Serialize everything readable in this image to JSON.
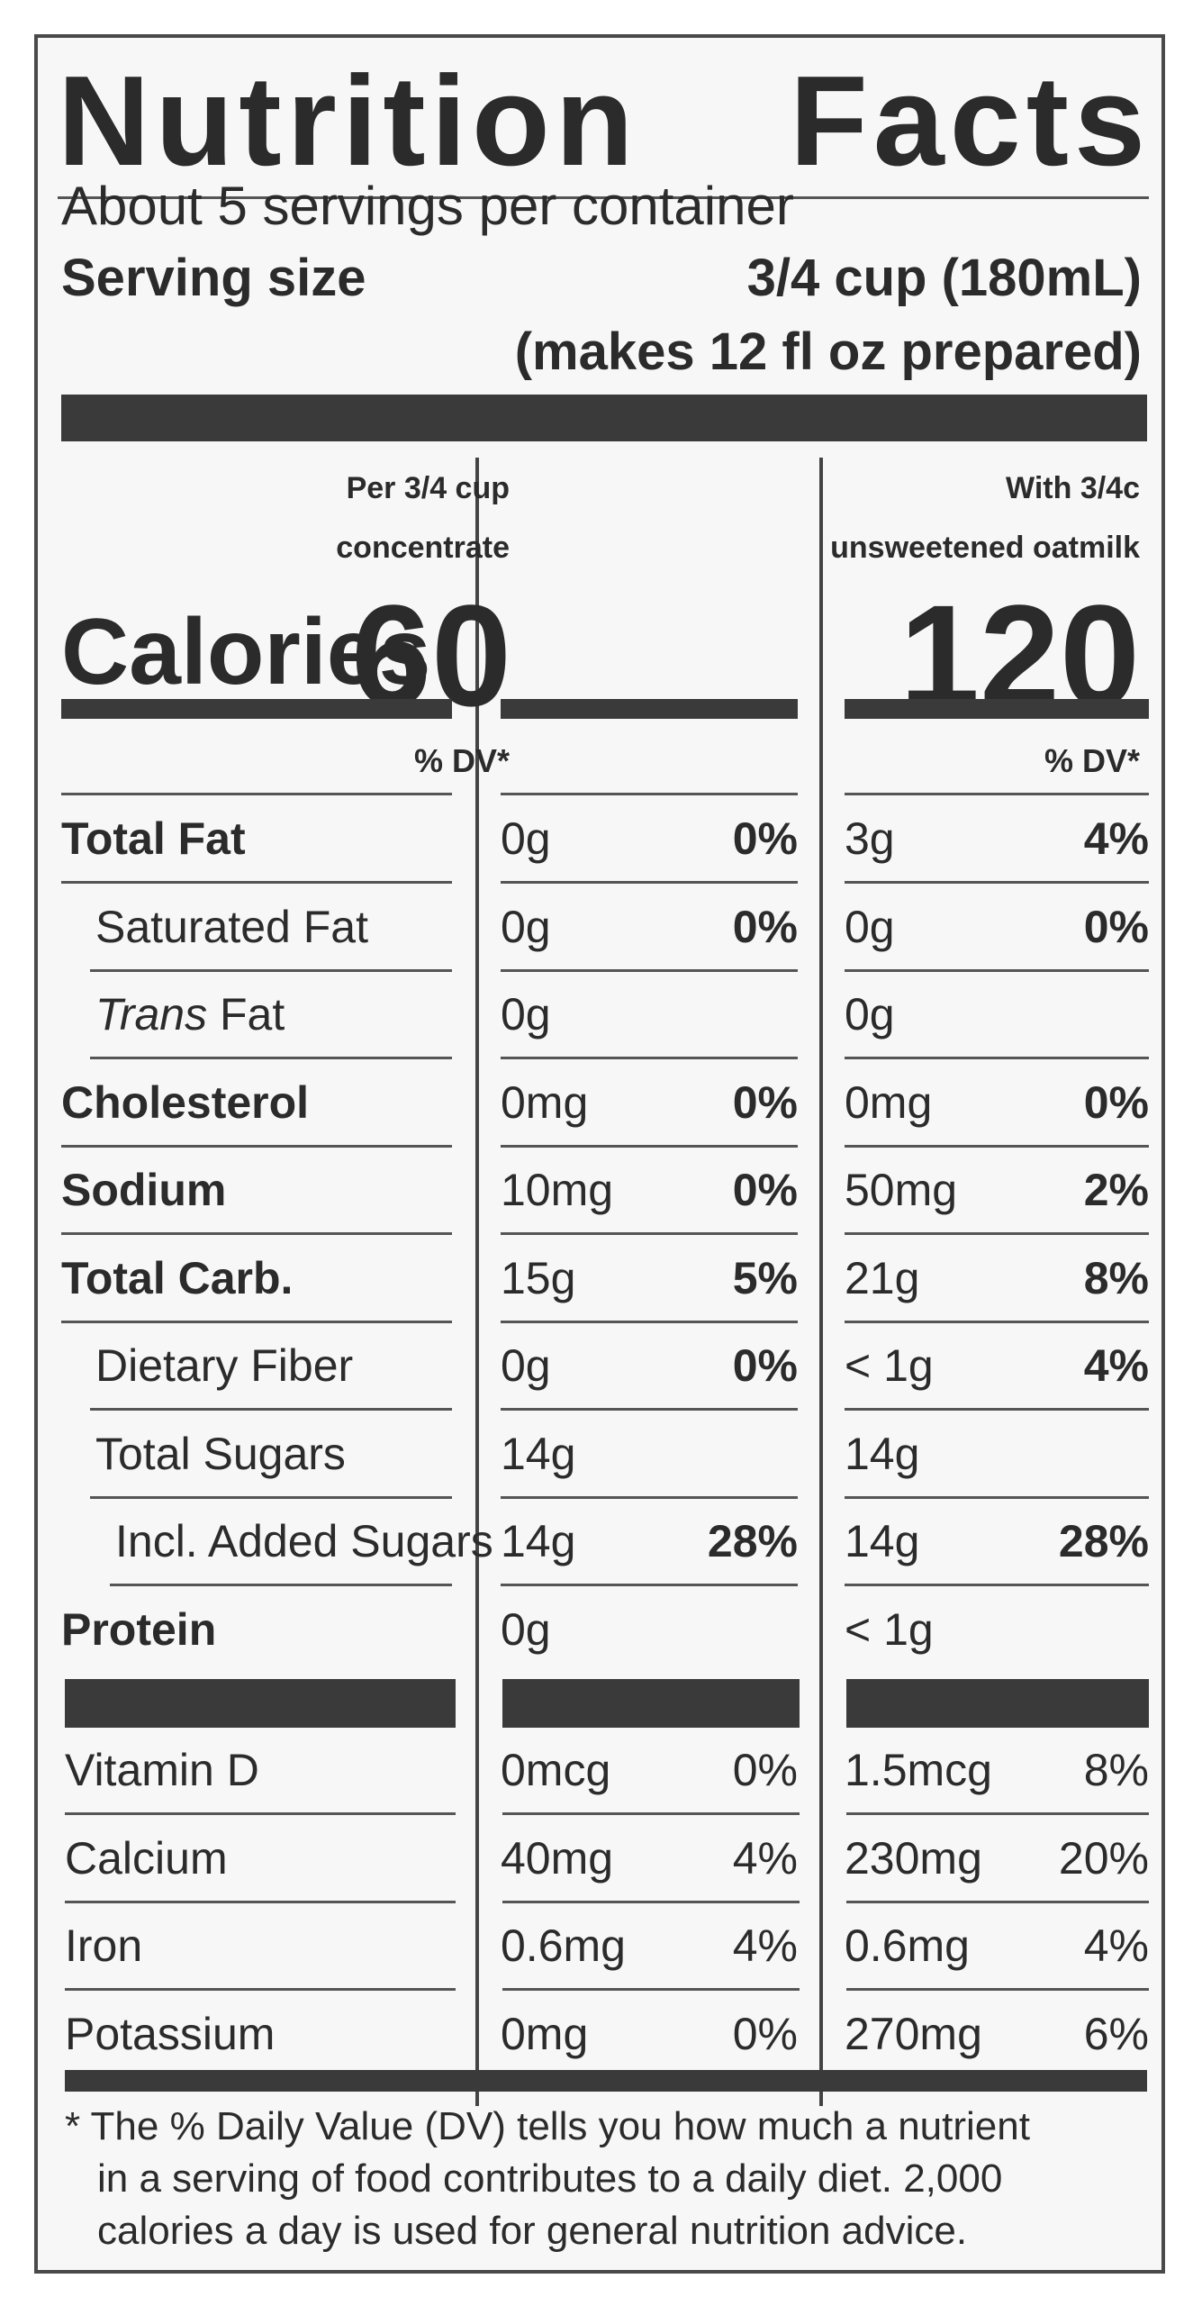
{
  "label": {
    "title_word1": "Nutrition",
    "title_word2": "Facts",
    "servings_per_container": "About 5 servings per container",
    "serving_size_label": "Serving size",
    "serving_size_value": "3/4 cup (180mL)",
    "makes_note": "(makes 12 fl oz prepared)",
    "columns": [
      {
        "line1": "Per 3/4 cup",
        "line2": "concentrate",
        "calories": "60",
        "dv_header": "% DV*"
      },
      {
        "line1": "With 3/4c",
        "line2": "unsweetened oatmilk",
        "calories": "120",
        "dv_header": "% DV*"
      }
    ],
    "calories_label": "Calories",
    "nutrients": [
      {
        "name": "Total Fat",
        "bold": true,
        "indent": 0,
        "c1_amount": "0g",
        "c1_dv": "0%",
        "c2_amount": "3g",
        "c2_dv": "4%"
      },
      {
        "name": "Saturated Fat",
        "bold": false,
        "indent": 1,
        "c1_amount": "0g",
        "c1_dv": "0%",
        "c2_amount": "0g",
        "c2_dv": "0%"
      },
      {
        "name_italic": "Trans",
        "name": " Fat",
        "bold": false,
        "indent": 1,
        "c1_amount": "0g",
        "c1_dv": "",
        "c2_amount": "0g",
        "c2_dv": ""
      },
      {
        "name": "Cholesterol",
        "bold": true,
        "indent": 0,
        "c1_amount": "0mg",
        "c1_dv": "0%",
        "c2_amount": "0mg",
        "c2_dv": "0%"
      },
      {
        "name": "Sodium",
        "bold": true,
        "indent": 0,
        "c1_amount": "10mg",
        "c1_dv": "0%",
        "c2_amount": "50mg",
        "c2_dv": "2%"
      },
      {
        "name": "Total Carb.",
        "bold": true,
        "indent": 0,
        "c1_amount": "15g",
        "c1_dv": "5%",
        "c2_amount": "21g",
        "c2_dv": "8%"
      },
      {
        "name": "Dietary Fiber",
        "bold": false,
        "indent": 1,
        "c1_amount": "0g",
        "c1_dv": "0%",
        "c2_amount": "< 1g",
        "c2_dv": "4%"
      },
      {
        "name": "Total Sugars",
        "bold": false,
        "indent": 1,
        "c1_amount": "14g",
        "c1_dv": "",
        "c2_amount": "14g",
        "c2_dv": ""
      },
      {
        "name": "Incl. Added Sugars",
        "bold": false,
        "indent": 2,
        "c1_amount": "14g",
        "c1_dv": "28%",
        "c2_amount": "14g",
        "c2_dv": "28%"
      },
      {
        "name": "Protein",
        "bold": true,
        "indent": 0,
        "c1_amount": "0g",
        "c1_dv": "",
        "c2_amount": "< 1g",
        "c2_dv": ""
      }
    ],
    "vitamins": [
      {
        "name": "Vitamin D",
        "c1_amount": "0mcg",
        "c1_dv": "0%",
        "c2_amount": "1.5mcg",
        "c2_dv": "8%"
      },
      {
        "name": "Calcium",
        "c1_amount": "40mg",
        "c1_dv": "4%",
        "c2_amount": "230mg",
        "c2_dv": "20%"
      },
      {
        "name": "Iron",
        "c1_amount": "0.6mg",
        "c1_dv": "4%",
        "c2_amount": "0.6mg",
        "c2_dv": "4%"
      },
      {
        "name": "Potassium",
        "c1_amount": "0mg",
        "c1_dv": "0%",
        "c2_amount": "270mg",
        "c2_dv": "6%"
      }
    ],
    "footnote_lines": [
      "* The % Daily Value (DV) tells you how much a nutrient",
      "in a serving of food contributes to a daily diet. 2,000",
      "calories a day is used for general nutrition advice."
    ]
  }
}
